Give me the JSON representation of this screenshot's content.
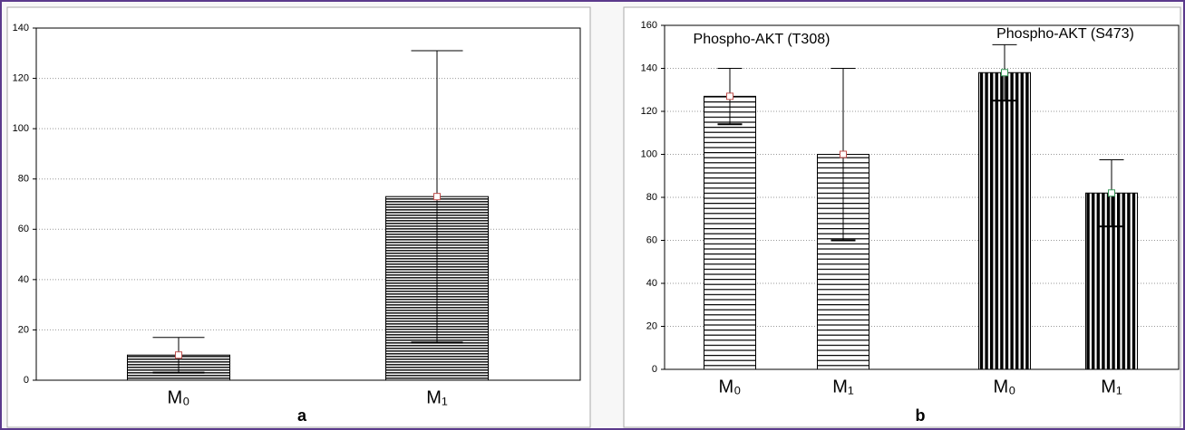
{
  "chart_data": [
    {
      "type": "bar",
      "label": "a",
      "categories": [
        "M₀",
        "M₁"
      ],
      "series": [
        {
          "values": [
            10,
            73
          ],
          "errors": [
            7,
            58
          ],
          "pattern": "horizontal",
          "color": "#000000",
          "marker_color": "#c0504d"
        }
      ],
      "ylim": [
        0,
        140
      ],
      "yticks": [
        0,
        20,
        40,
        60,
        80,
        100,
        120,
        140
      ],
      "grid": true
    },
    {
      "type": "bar",
      "label": "b",
      "categories": [
        "M₀",
        "M₁"
      ],
      "series": [
        {
          "name": "Phospho-AKT (T308)",
          "values": [
            127,
            100
          ],
          "errors": [
            13,
            40
          ],
          "pattern": "horizontal",
          "color": "#000000",
          "marker_color": "#c0504d"
        },
        {
          "name": "Phospho-AKT (S473)",
          "values": [
            138,
            82
          ],
          "errors": [
            13,
            15.5
          ],
          "pattern": "vertical",
          "color": "#000000",
          "marker_color": "#3a9a5a"
        }
      ],
      "ylim": [
        0,
        160
      ],
      "yticks": [
        0,
        20,
        40,
        60,
        80,
        100,
        120,
        140,
        160
      ],
      "grid": true
    }
  ]
}
